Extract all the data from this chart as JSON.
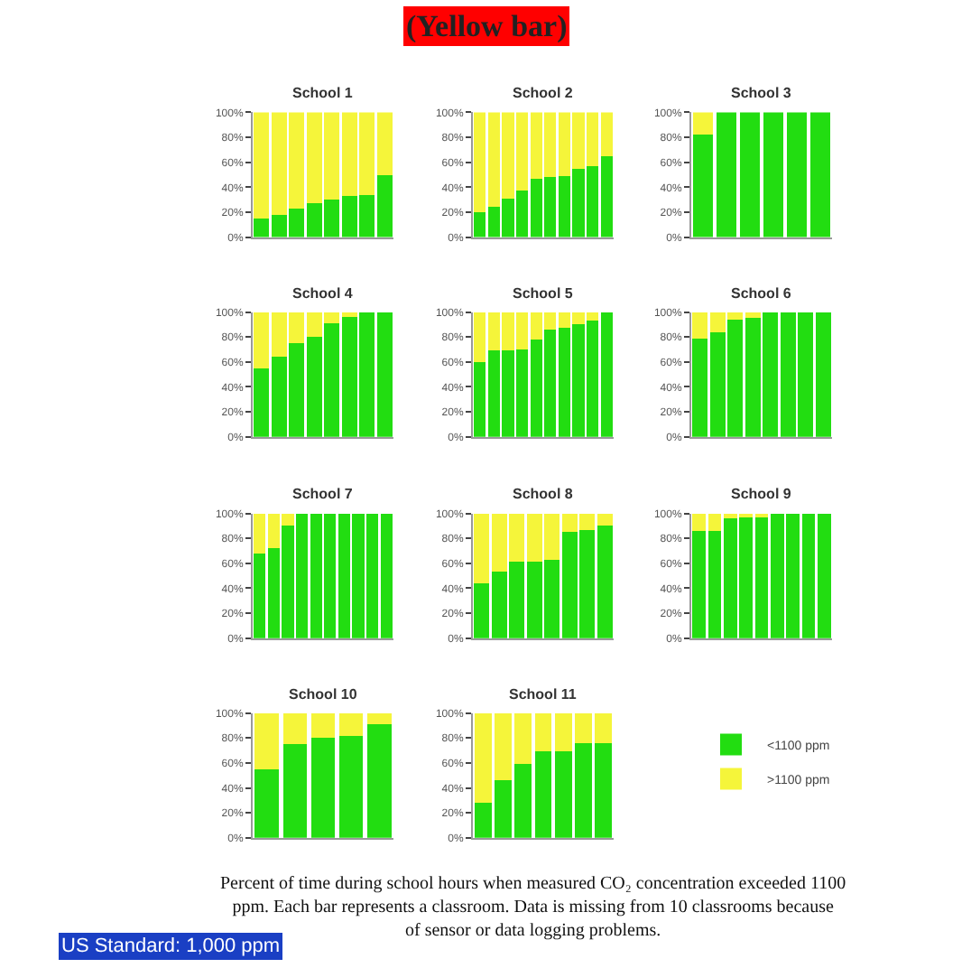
{
  "chart_data": [
    {
      "type": "bar",
      "title": "School 1",
      "stacked": true,
      "categories": [
        null,
        null,
        null,
        null,
        null,
        null,
        null,
        null
      ],
      "ylim": [
        0,
        100
      ],
      "yticks": [
        {
          "value": 0,
          "label": "0%"
        },
        {
          "value": 20,
          "label": "20%"
        },
        {
          "value": 40,
          "label": "40%"
        },
        {
          "value": 60,
          "label": "60%"
        },
        {
          "value": 80,
          "label": "80%"
        },
        {
          "value": 100,
          "label": "100%"
        }
      ],
      "series": [
        {
          "color": "#22dd11",
          "values": [
            15,
            18,
            23,
            27,
            30,
            33,
            34,
            50
          ]
        },
        {
          "color": "#f5f53a",
          "values": [
            85,
            82,
            77,
            73,
            70,
            67,
            66,
            50
          ]
        }
      ]
    },
    {
      "type": "bar",
      "title": "School 2",
      "stacked": true,
      "categories": [
        null,
        null,
        null,
        null,
        null,
        null,
        null,
        null,
        null,
        null
      ],
      "ylim": [
        0,
        100
      ],
      "yticks": [
        {
          "value": 0,
          "label": "0%"
        },
        {
          "value": 20,
          "label": "20%"
        },
        {
          "value": 40,
          "label": "40%"
        },
        {
          "value": 60,
          "label": "60%"
        },
        {
          "value": 80,
          "label": "80%"
        },
        {
          "value": 100,
          "label": "100%"
        }
      ],
      "annotations": [
        "(Yellow bar)"
      ],
      "series": [
        {
          "color": "#22dd11",
          "values": [
            20,
            24,
            31,
            37,
            47,
            48,
            49,
            55,
            57,
            65
          ]
        },
        {
          "color": "#f5f53a",
          "values": [
            80,
            76,
            69,
            63,
            53,
            52,
            51,
            45,
            43,
            35
          ]
        }
      ]
    },
    {
      "type": "bar",
      "title": "School 3",
      "stacked": true,
      "categories": [
        null,
        null,
        null,
        null,
        null,
        null
      ],
      "ylim": [
        0,
        100
      ],
      "yticks": [
        {
          "value": 0,
          "label": "0%"
        },
        {
          "value": 20,
          "label": "20%"
        },
        {
          "value": 40,
          "label": "40%"
        },
        {
          "value": 60,
          "label": "60%"
        },
        {
          "value": 80,
          "label": "80%"
        },
        {
          "value": 100,
          "label": "100%"
        }
      ],
      "series": [
        {
          "color": "#22dd11",
          "values": [
            82,
            100,
            100,
            100,
            100,
            100
          ]
        },
        {
          "color": "#f5f53a",
          "values": [
            18,
            0,
            0,
            0,
            0,
            0
          ]
        }
      ]
    },
    {
      "type": "bar",
      "title": "School 4",
      "stacked": true,
      "categories": [
        null,
        null,
        null,
        null,
        null,
        null,
        null,
        null
      ],
      "ylim": [
        0,
        100
      ],
      "yticks": [
        {
          "value": 0,
          "label": "0%"
        },
        {
          "value": 20,
          "label": "20%"
        },
        {
          "value": 40,
          "label": "40%"
        },
        {
          "value": 60,
          "label": "60%"
        },
        {
          "value": 80,
          "label": "80%"
        },
        {
          "value": 100,
          "label": "100%"
        }
      ],
      "series": [
        {
          "color": "#22dd11",
          "values": [
            55,
            64,
            75,
            80,
            91,
            96,
            100,
            100
          ]
        },
        {
          "color": "#f5f53a",
          "values": [
            45,
            36,
            25,
            20,
            9,
            4,
            0,
            0
          ]
        }
      ]
    },
    {
      "type": "bar",
      "title": "School 5",
      "stacked": true,
      "categories": [
        null,
        null,
        null,
        null,
        null,
        null,
        null,
        null,
        null,
        null
      ],
      "ylim": [
        0,
        100
      ],
      "yticks": [
        {
          "value": 0,
          "label": "0%"
        },
        {
          "value": 20,
          "label": "20%"
        },
        {
          "value": 40,
          "label": "40%"
        },
        {
          "value": 60,
          "label": "60%"
        },
        {
          "value": 80,
          "label": "80%"
        },
        {
          "value": 100,
          "label": "100%"
        }
      ],
      "series": [
        {
          "color": "#22dd11",
          "values": [
            60,
            69,
            69,
            70,
            78,
            86,
            87,
            90,
            93,
            100
          ]
        },
        {
          "color": "#f5f53a",
          "values": [
            40,
            31,
            31,
            30,
            22,
            14,
            13,
            10,
            7,
            0
          ]
        }
      ]
    },
    {
      "type": "bar",
      "title": "School 6",
      "stacked": true,
      "categories": [
        null,
        null,
        null,
        null,
        null,
        null,
        null,
        null
      ],
      "ylim": [
        0,
        100
      ],
      "yticks": [
        {
          "value": 0,
          "label": "0%"
        },
        {
          "value": 20,
          "label": "20%"
        },
        {
          "value": 40,
          "label": "40%"
        },
        {
          "value": 60,
          "label": "60%"
        },
        {
          "value": 80,
          "label": "80%"
        },
        {
          "value": 100,
          "label": "100%"
        }
      ],
      "series": [
        {
          "color": "#22dd11",
          "values": [
            79,
            84,
            94,
            95,
            100,
            100,
            100,
            100
          ]
        },
        {
          "color": "#f5f53a",
          "values": [
            21,
            16,
            6,
            5,
            0,
            0,
            0,
            0
          ]
        }
      ]
    },
    {
      "type": "bar",
      "title": "School 7",
      "stacked": true,
      "categories": [
        null,
        null,
        null,
        null,
        null,
        null,
        null,
        null,
        null,
        null
      ],
      "ylim": [
        0,
        100
      ],
      "yticks": [
        {
          "value": 0,
          "label": "0%"
        },
        {
          "value": 20,
          "label": "20%"
        },
        {
          "value": 40,
          "label": "40%"
        },
        {
          "value": 60,
          "label": "60%"
        },
        {
          "value": 80,
          "label": "80%"
        },
        {
          "value": 100,
          "label": "100%"
        }
      ],
      "series": [
        {
          "color": "#22dd11",
          "values": [
            68,
            72,
            90,
            100,
            100,
            100,
            100,
            100,
            100,
            100
          ]
        },
        {
          "color": "#f5f53a",
          "values": [
            32,
            28,
            10,
            0,
            0,
            0,
            0,
            0,
            0,
            0
          ]
        }
      ]
    },
    {
      "type": "bar",
      "title": "School 8",
      "stacked": true,
      "categories": [
        null,
        null,
        null,
        null,
        null,
        null,
        null,
        null
      ],
      "ylim": [
        0,
        100
      ],
      "yticks": [
        {
          "value": 0,
          "label": "0%"
        },
        {
          "value": 20,
          "label": "20%"
        },
        {
          "value": 40,
          "label": "40%"
        },
        {
          "value": 60,
          "label": "60%"
        },
        {
          "value": 80,
          "label": "80%"
        },
        {
          "value": 100,
          "label": "100%"
        }
      ],
      "series": [
        {
          "color": "#22dd11",
          "values": [
            44,
            53,
            61,
            61,
            63,
            85,
            87,
            90
          ]
        },
        {
          "color": "#f5f53a",
          "values": [
            56,
            47,
            39,
            39,
            37,
            15,
            13,
            10
          ]
        }
      ]
    },
    {
      "type": "bar",
      "title": "School 9",
      "stacked": true,
      "categories": [
        null,
        null,
        null,
        null,
        null,
        null,
        null,
        null,
        null
      ],
      "ylim": [
        0,
        100
      ],
      "yticks": [
        {
          "value": 0,
          "label": "0%"
        },
        {
          "value": 20,
          "label": "20%"
        },
        {
          "value": 40,
          "label": "40%"
        },
        {
          "value": 60,
          "label": "60%"
        },
        {
          "value": 80,
          "label": "80%"
        },
        {
          "value": 100,
          "label": "100%"
        }
      ],
      "series": [
        {
          "color": "#22dd11",
          "values": [
            86,
            86,
            96,
            97,
            98,
            100,
            100,
            100,
            100
          ]
        },
        {
          "color": "#f5f53a",
          "values": [
            14,
            14,
            4,
            3,
            2,
            0,
            0,
            0,
            0
          ]
        }
      ]
    },
    {
      "type": "bar",
      "title": "School 10",
      "stacked": true,
      "categories": [
        null,
        null,
        null,
        null,
        null
      ],
      "ylim": [
        0,
        100
      ],
      "yticks": [
        {
          "value": 0,
          "label": "0%"
        },
        {
          "value": 20,
          "label": "20%"
        },
        {
          "value": 40,
          "label": "40%"
        },
        {
          "value": 60,
          "label": "60%"
        },
        {
          "value": 80,
          "label": "80%"
        },
        {
          "value": 100,
          "label": "100%"
        }
      ],
      "series": [
        {
          "color": "#22dd11",
          "values": [
            55,
            75,
            80,
            82,
            91
          ]
        },
        {
          "color": "#f5f53a",
          "values": [
            45,
            25,
            20,
            18,
            9
          ]
        }
      ]
    },
    {
      "type": "bar",
      "title": "School 11",
      "stacked": true,
      "categories": [
        null,
        null,
        null,
        null,
        null,
        null,
        null
      ],
      "ylim": [
        0,
        100
      ],
      "yticks": [
        {
          "value": 0,
          "label": "0%"
        },
        {
          "value": 20,
          "label": "20%"
        },
        {
          "value": 40,
          "label": "40%"
        },
        {
          "value": 60,
          "label": "60%"
        },
        {
          "value": 80,
          "label": "80%"
        },
        {
          "value": 100,
          "label": "100%"
        }
      ],
      "legend": "right",
      "annotations": [
        "Percent of time during school hours when measured CO₂ concentration exceeded 1100 ppm. Each bar represents a classroom. Data is missing from 10 classrooms because of sensor or data logging problems.",
        "US Standard: 1,000 ppm"
      ],
      "series": [
        {
          "name": "<1100 ppm",
          "color": "#22dd11",
          "values": [
            28,
            46,
            59,
            69,
            69,
            76,
            76
          ]
        },
        {
          "name": ">1100 ppm",
          "color": "#f5f53a",
          "values": [
            72,
            54,
            41,
            31,
            31,
            24,
            24
          ]
        }
      ]
    }
  ]
}
